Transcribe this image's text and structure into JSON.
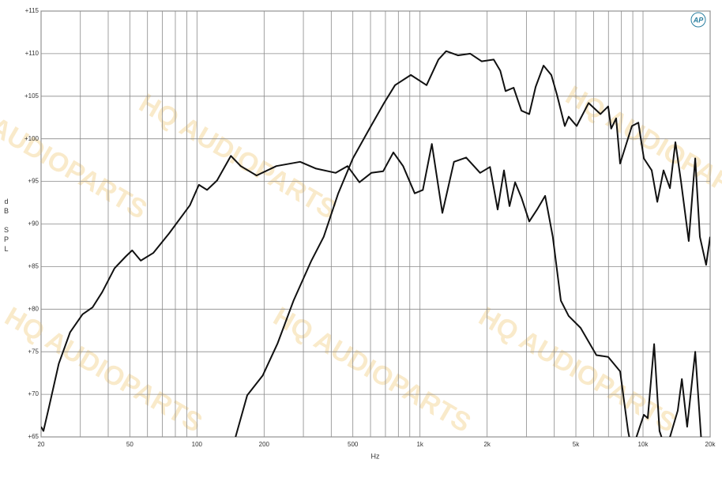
{
  "chart_data": {
    "type": "line",
    "xlabel": "Hz",
    "ylabel": "dB SPL",
    "logo": "AP",
    "watermark": "HQ AUDIOPARTS",
    "xscale": "log",
    "grid": true,
    "xlim": [
      20,
      20000
    ],
    "ylim": [
      65,
      115
    ],
    "xticks": [
      20,
      50,
      100,
      200,
      500,
      {
        "value": 1000,
        "label": "1k"
      },
      {
        "value": 2000,
        "label": "2k"
      },
      {
        "value": 5000,
        "label": "5k"
      },
      {
        "value": 10000,
        "label": "10k"
      },
      {
        "value": 20000,
        "label": "20k"
      }
    ],
    "xgrid": [
      30,
      40,
      60,
      70,
      80,
      90,
      300,
      400,
      600,
      700,
      800,
      900,
      3000,
      4000,
      6000,
      7000,
      8000,
      9000
    ],
    "yticks": [
      {
        "value": 65,
        "label": "+65"
      },
      {
        "value": 70,
        "label": "+70"
      },
      {
        "value": 75,
        "label": "+75"
      },
      {
        "value": 80,
        "label": "+80"
      },
      {
        "value": 85,
        "label": "+85"
      },
      {
        "value": 90,
        "label": "+90"
      },
      {
        "value": 95,
        "label": "+95"
      },
      {
        "value": 100,
        "label": "+100"
      },
      {
        "value": 105,
        "label": "+105"
      },
      {
        "value": 110,
        "label": "+110"
      },
      {
        "value": 115,
        "label": "+115"
      }
    ],
    "series": [
      {
        "color": "#111111",
        "x": [
          20,
          20.5,
          21.7,
          24,
          27,
          30.7,
          34,
          37.6,
          42.7,
          48,
          51.2,
          56,
          63.7,
          75,
          93,
          102,
          111,
          123,
          142,
          157,
          185,
          227,
          290,
          342,
          419,
          473,
          535,
          605,
          684,
          760,
          840,
          947,
          1030,
          1130,
          1260,
          1420,
          1610,
          1860,
          2060,
          2230,
          2380,
          2520,
          2670,
          2850,
          3090,
          3350,
          3640,
          3940,
          4280,
          4640,
          5250,
          6180,
          6980,
          7890,
          8570,
          8920,
          9680,
          10090,
          10500,
          11220,
          11860,
          12680,
          14320,
          14930,
          15780,
          17140,
          18280
        ],
        "values": [
          66.2,
          65.7,
          68.5,
          73.6,
          77.3,
          79.4,
          80.2,
          82.0,
          84.8,
          86.2,
          86.9,
          85.7,
          86.6,
          88.9,
          92.2,
          94.6,
          94.0,
          95.1,
          98.0,
          96.8,
          95.7,
          96.8,
          97.3,
          96.5,
          96.0,
          96.8,
          94.9,
          96.0,
          96.2,
          98.4,
          96.8,
          93.6,
          94.0,
          99.4,
          91.3,
          97.3,
          97.8,
          96.0,
          96.7,
          91.7,
          96.3,
          92.1,
          94.9,
          93.1,
          90.3,
          91.7,
          93.3,
          88.5,
          81.0,
          79.2,
          77.8,
          74.6,
          74.4,
          72.7,
          65.7,
          63.4,
          66.2,
          67.6,
          67.2,
          75.9,
          65.7,
          63.4,
          68.1,
          71.8,
          66.2,
          75.0,
          64.3
        ]
      },
      {
        "color": "#111111",
        "x": [
          149,
          168,
          197,
          230,
          271,
          326,
          370,
          430,
          500,
          588,
          690,
          773,
          910,
          1070,
          1210,
          1310,
          1480,
          1680,
          1890,
          2140,
          2290,
          2420,
          2630,
          2850,
          3090,
          3300,
          3580,
          3880,
          4110,
          4460,
          4640,
          5040,
          5700,
          6440,
          6980,
          7200,
          7580,
          7890,
          8920,
          9530,
          10090,
          10940,
          11590,
          12360,
          13210,
          13970,
          14800,
          16040,
          17140,
          17990,
          19190,
          20000
        ],
        "values": [
          65,
          69.9,
          72.2,
          76.0,
          81.0,
          85.7,
          88.5,
          93.6,
          97.7,
          101.0,
          104.2,
          106.3,
          107.5,
          106.3,
          109.3,
          110.3,
          109.8,
          110.0,
          109.1,
          109.3,
          108.0,
          105.6,
          106.0,
          103.3,
          102.9,
          106.1,
          108.6,
          107.5,
          105.2,
          101.5,
          102.6,
          101.5,
          104.2,
          102.9,
          103.8,
          101.2,
          102.4,
          97.1,
          101.5,
          101.9,
          97.7,
          96.3,
          92.6,
          96.3,
          94.2,
          99.6,
          95.0,
          88.0,
          97.7,
          88.5,
          85.2,
          88.5
        ]
      }
    ]
  }
}
